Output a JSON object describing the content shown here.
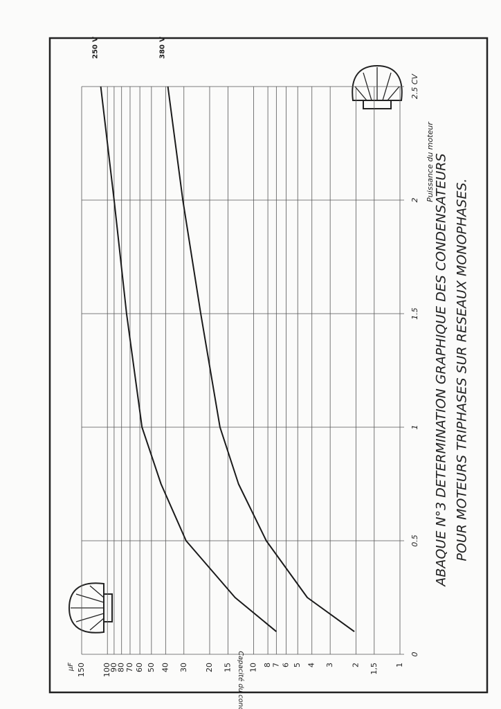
{
  "chart_data": {
    "type": "line",
    "title": "ABAQUE N°3  DETERMINATION  GRAPHIQUE  DES  CONDENSATEURS",
    "subtitle": "POUR  MOTEURS  TRIPHASES  SUR  RESEAUX  MONOPHASES.",
    "x_label": "Puissance du moteur",
    "y_label": "Capacité du condensateur",
    "y_unit": "µF",
    "x": [
      0.1,
      0.25,
      0.5,
      0.75,
      1,
      1.5,
      2,
      2.5
    ],
    "series": [
      {
        "name": "250 V",
        "color": "#1a1a1a",
        "values": [
          7,
          13.4,
          29,
          43,
          58,
          74,
          90,
          111
        ]
      },
      {
        "name": "380 V",
        "color": "#1a1a1a",
        "values": [
          2.05,
          4.3,
          8.2,
          12.7,
          17,
          23,
          30.5,
          38.6
        ]
      }
    ],
    "xlim": [
      0,
      2.5
    ],
    "xticks": [
      0,
      0.5,
      1,
      1.5,
      2,
      {
        "value": 2.5,
        "label": "2.5 CV"
      }
    ],
    "ylim": [
      1,
      150
    ],
    "yticks": [
      1,
      {
        "value": 1.5,
        "label": "1,5"
      },
      2,
      3,
      4,
      5,
      6,
      7,
      8,
      10,
      15,
      20,
      30,
      40,
      50,
      60,
      70,
      80,
      90,
      100,
      150
    ],
    "log_y": true,
    "grid": true
  }
}
